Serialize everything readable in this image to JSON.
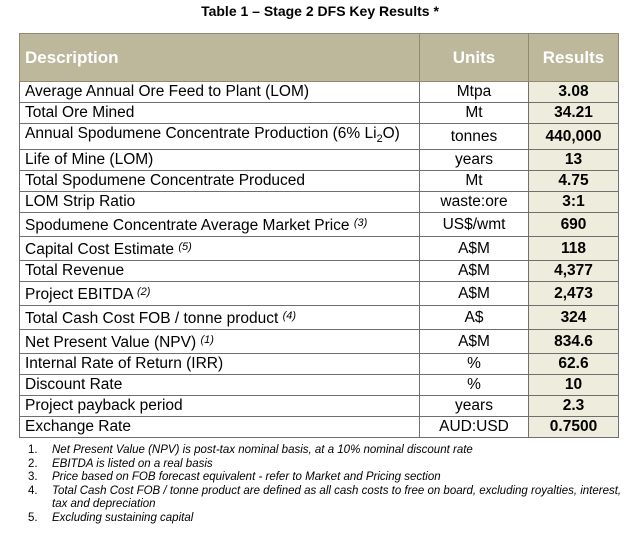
{
  "title": "Table 1 – Stage 2 DFS Key Results *",
  "headers": {
    "description": "Description",
    "units": "Units",
    "results": "Results"
  },
  "rows": [
    {
      "desc": "Average Annual Ore Feed to Plant (LOM)",
      "note": "",
      "units": "Mtpa",
      "value": "3.08"
    },
    {
      "desc": "Total Ore Mined",
      "note": "",
      "units": "Mt",
      "value": "34.21"
    },
    {
      "desc_pre": "Annual Spodumene Concentrate Production (6% Li",
      "desc_sub": "2",
      "desc_post": "O)",
      "note": "",
      "units": "tonnes",
      "value": "440,000"
    },
    {
      "desc": "Life of Mine (LOM)",
      "note": "",
      "units": "years",
      "value": "13"
    },
    {
      "desc": "Total Spodumene Concentrate Produced",
      "note": "",
      "units": "Mt",
      "value": "4.75"
    },
    {
      "desc": "LOM Strip Ratio",
      "note": "",
      "units": "waste:ore",
      "value": "3:1"
    },
    {
      "desc": "Spodumene Concentrate Average Market Price",
      "note": "(3)",
      "units": "US$/wmt",
      "value": "690"
    },
    {
      "desc": "Capital Cost Estimate",
      "note": "(5)",
      "units": "A$M",
      "value": "118"
    },
    {
      "desc": "Total Revenue",
      "note": "",
      "units": "A$M",
      "value": "4,377"
    },
    {
      "desc": "Project EBITDA",
      "note": "(2)",
      "units": "A$M",
      "value": "2,473"
    },
    {
      "desc": "Total Cash Cost FOB / tonne product",
      "note": "(4)",
      "units": "A$",
      "value": "324"
    },
    {
      "desc": "Net Present Value (NPV)",
      "note": "(1)",
      "units": "A$M",
      "value": "834.6"
    },
    {
      "desc": "Internal Rate of Return (IRR)",
      "note": "",
      "units": "%",
      "value": "62.6"
    },
    {
      "desc": "Discount Rate",
      "note": "",
      "units": "%",
      "value": "10"
    },
    {
      "desc": "Project payback period",
      "note": "",
      "units": "years",
      "value": "2.3"
    },
    {
      "desc": "Exchange Rate",
      "note": "",
      "units": "AUD:USD",
      "value": "0.7500"
    }
  ],
  "footnotes": [
    {
      "num": "1.",
      "text": "Net Present Value (NPV) is post-tax nominal basis, at a 10% nominal discount rate"
    },
    {
      "num": "2.",
      "text": "EBITDA is listed on a real basis"
    },
    {
      "num": "3.",
      "text": "Price based on FOB forecast equivalent - refer to Market and Pricing section"
    },
    {
      "num": "4.",
      "text": "Total Cash Cost FOB / tonne product are defined as all cash costs to free on board, excluding royalties, interest, tax and depreciation"
    },
    {
      "num": "5.",
      "text": "Excluding sustaining capital"
    }
  ]
}
